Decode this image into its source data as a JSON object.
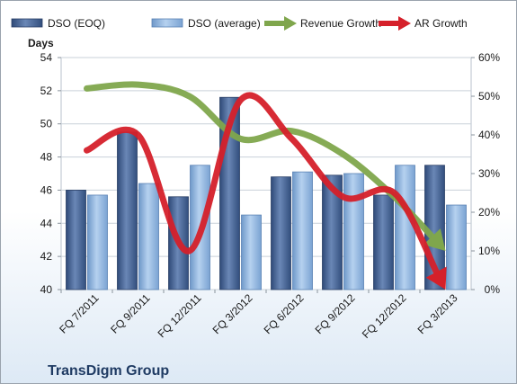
{
  "company": "TransDigm Group",
  "chart_data": {
    "type": "bar",
    "categories": [
      "FQ 7/2011",
      "FQ 9/2011",
      "FQ 12/2011",
      "FQ 3/2012",
      "FQ 6/2012",
      "FQ 9/2012",
      "FQ 12/2012",
      "FQ 3/2013"
    ],
    "ylabel": "Days",
    "ylim": [
      40,
      54
    ],
    "yticks": [
      "40",
      "42",
      "44",
      "46",
      "48",
      "50",
      "52",
      "54"
    ],
    "y2lim": [
      0,
      60
    ],
    "y2ticks": [
      "0%",
      "10%",
      "20%",
      "30%",
      "40%",
      "50%",
      "60%"
    ],
    "legend_position": "top",
    "grid": "horizontal",
    "series": [
      {
        "name": "DSO (EOQ)",
        "kind": "bar",
        "color": "#4a6796",
        "values": [
          46.0,
          49.5,
          45.6,
          51.6,
          46.8,
          46.9,
          45.7,
          47.5
        ]
      },
      {
        "name": "DSO (average)",
        "kind": "bar",
        "color": "#8fb4de",
        "values": [
          45.7,
          46.4,
          47.5,
          44.5,
          47.1,
          47.0,
          47.5,
          45.1
        ]
      },
      {
        "name": "Revenue Growth",
        "kind": "line",
        "axis": "right",
        "color": "#7fa64c",
        "values": [
          52,
          53,
          50,
          39,
          41,
          35,
          24,
          10
        ]
      },
      {
        "name": "AR Growth",
        "kind": "line",
        "axis": "right",
        "color": "#d5202a",
        "values": [
          36,
          40,
          10,
          49,
          39,
          24,
          25,
          0
        ]
      }
    ]
  }
}
